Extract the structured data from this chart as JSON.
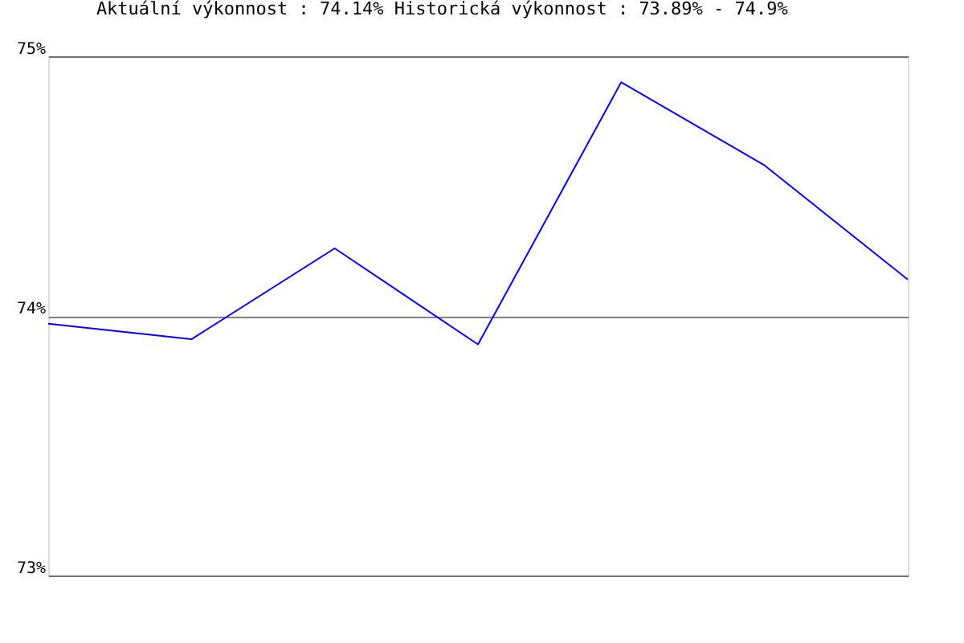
{
  "chart_data": {
    "type": "line",
    "title": "Aktuální výkonnost : 74.14%  Historická výkonnost : 73.89% - 74.9%",
    "categories": [
      null,
      null,
      null,
      null,
      null,
      null,
      null
    ],
    "series": [
      {
        "color": "#0000ff",
        "values": [
          73.97,
          73.91,
          74.26,
          73.89,
          74.9,
          74.58,
          74.14
        ]
      }
    ],
    "ylim": [
      73,
      75
    ],
    "yticks": [
      {
        "value": 73,
        "label": "73%"
      },
      {
        "value": 74,
        "label": "74%"
      },
      {
        "value": 75,
        "label": "75%"
      }
    ],
    "grid": "y",
    "tick_labels": "y",
    "marker": "none",
    "line_style": "solid",
    "legend": false
  }
}
